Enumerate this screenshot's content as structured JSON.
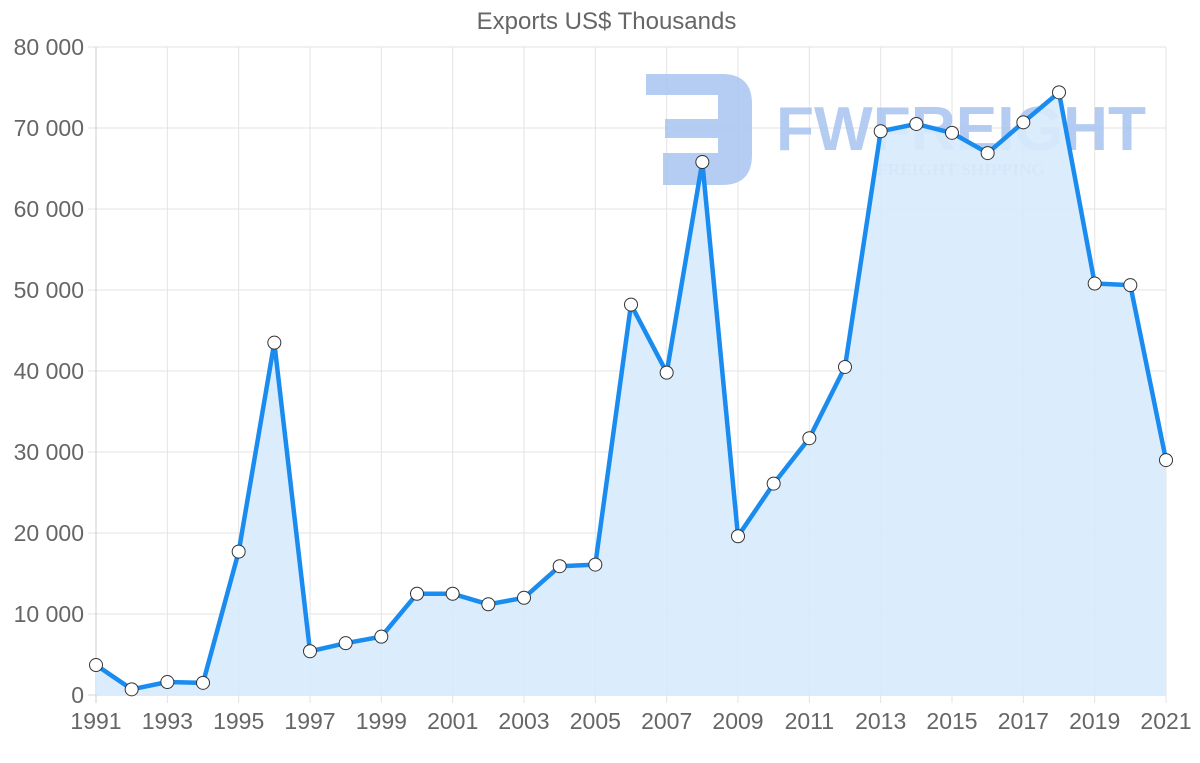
{
  "chart_data": {
    "type": "line",
    "title": "Exports US$ Thousands",
    "xlabel": "",
    "ylabel": "",
    "ylim": [
      0,
      80000
    ],
    "grid": true,
    "legend": "none",
    "fill": true,
    "x": [
      1991,
      1992,
      1993,
      1994,
      1995,
      1996,
      1997,
      1998,
      1999,
      2000,
      2001,
      2002,
      2003,
      2004,
      2005,
      2006,
      2007,
      2008,
      2009,
      2010,
      2011,
      2012,
      2013,
      2014,
      2015,
      2016,
      2017,
      2018,
      2019,
      2020,
      2021
    ],
    "series": [
      {
        "name": "Exports US$ Thousands",
        "values": [
          3700,
          700,
          1600,
          1500,
          17700,
          43500,
          5400,
          6400,
          7200,
          12500,
          12500,
          11200,
          12000,
          15900,
          16100,
          48200,
          39800,
          65800,
          19600,
          26100,
          31700,
          40500,
          69600,
          70500,
          69400,
          66900,
          70700,
          74400,
          50800,
          50600,
          29000
        ]
      }
    ],
    "y_ticks": [
      "0",
      "10 000",
      "20 000",
      "30 000",
      "40 000",
      "50 000",
      "60 000",
      "70 000",
      "80 000"
    ],
    "x_ticks": [
      "1991",
      "1993",
      "1995",
      "1997",
      "1999",
      "2001",
      "2003",
      "2005",
      "2007",
      "2009",
      "2011",
      "2013",
      "2015",
      "2017",
      "2019",
      "2021"
    ],
    "colors": {
      "line": "#1a8cf0",
      "fill": "#d7eafc",
      "marker_fill": "#ffffff",
      "marker_stroke": "#333333",
      "grid": "#e3e3e3",
      "text": "#666666",
      "watermark": "#a8c4f0"
    }
  },
  "watermark": {
    "brand": "FWFREIGHT",
    "tagline": "FREIGHT SHIPPING"
  }
}
